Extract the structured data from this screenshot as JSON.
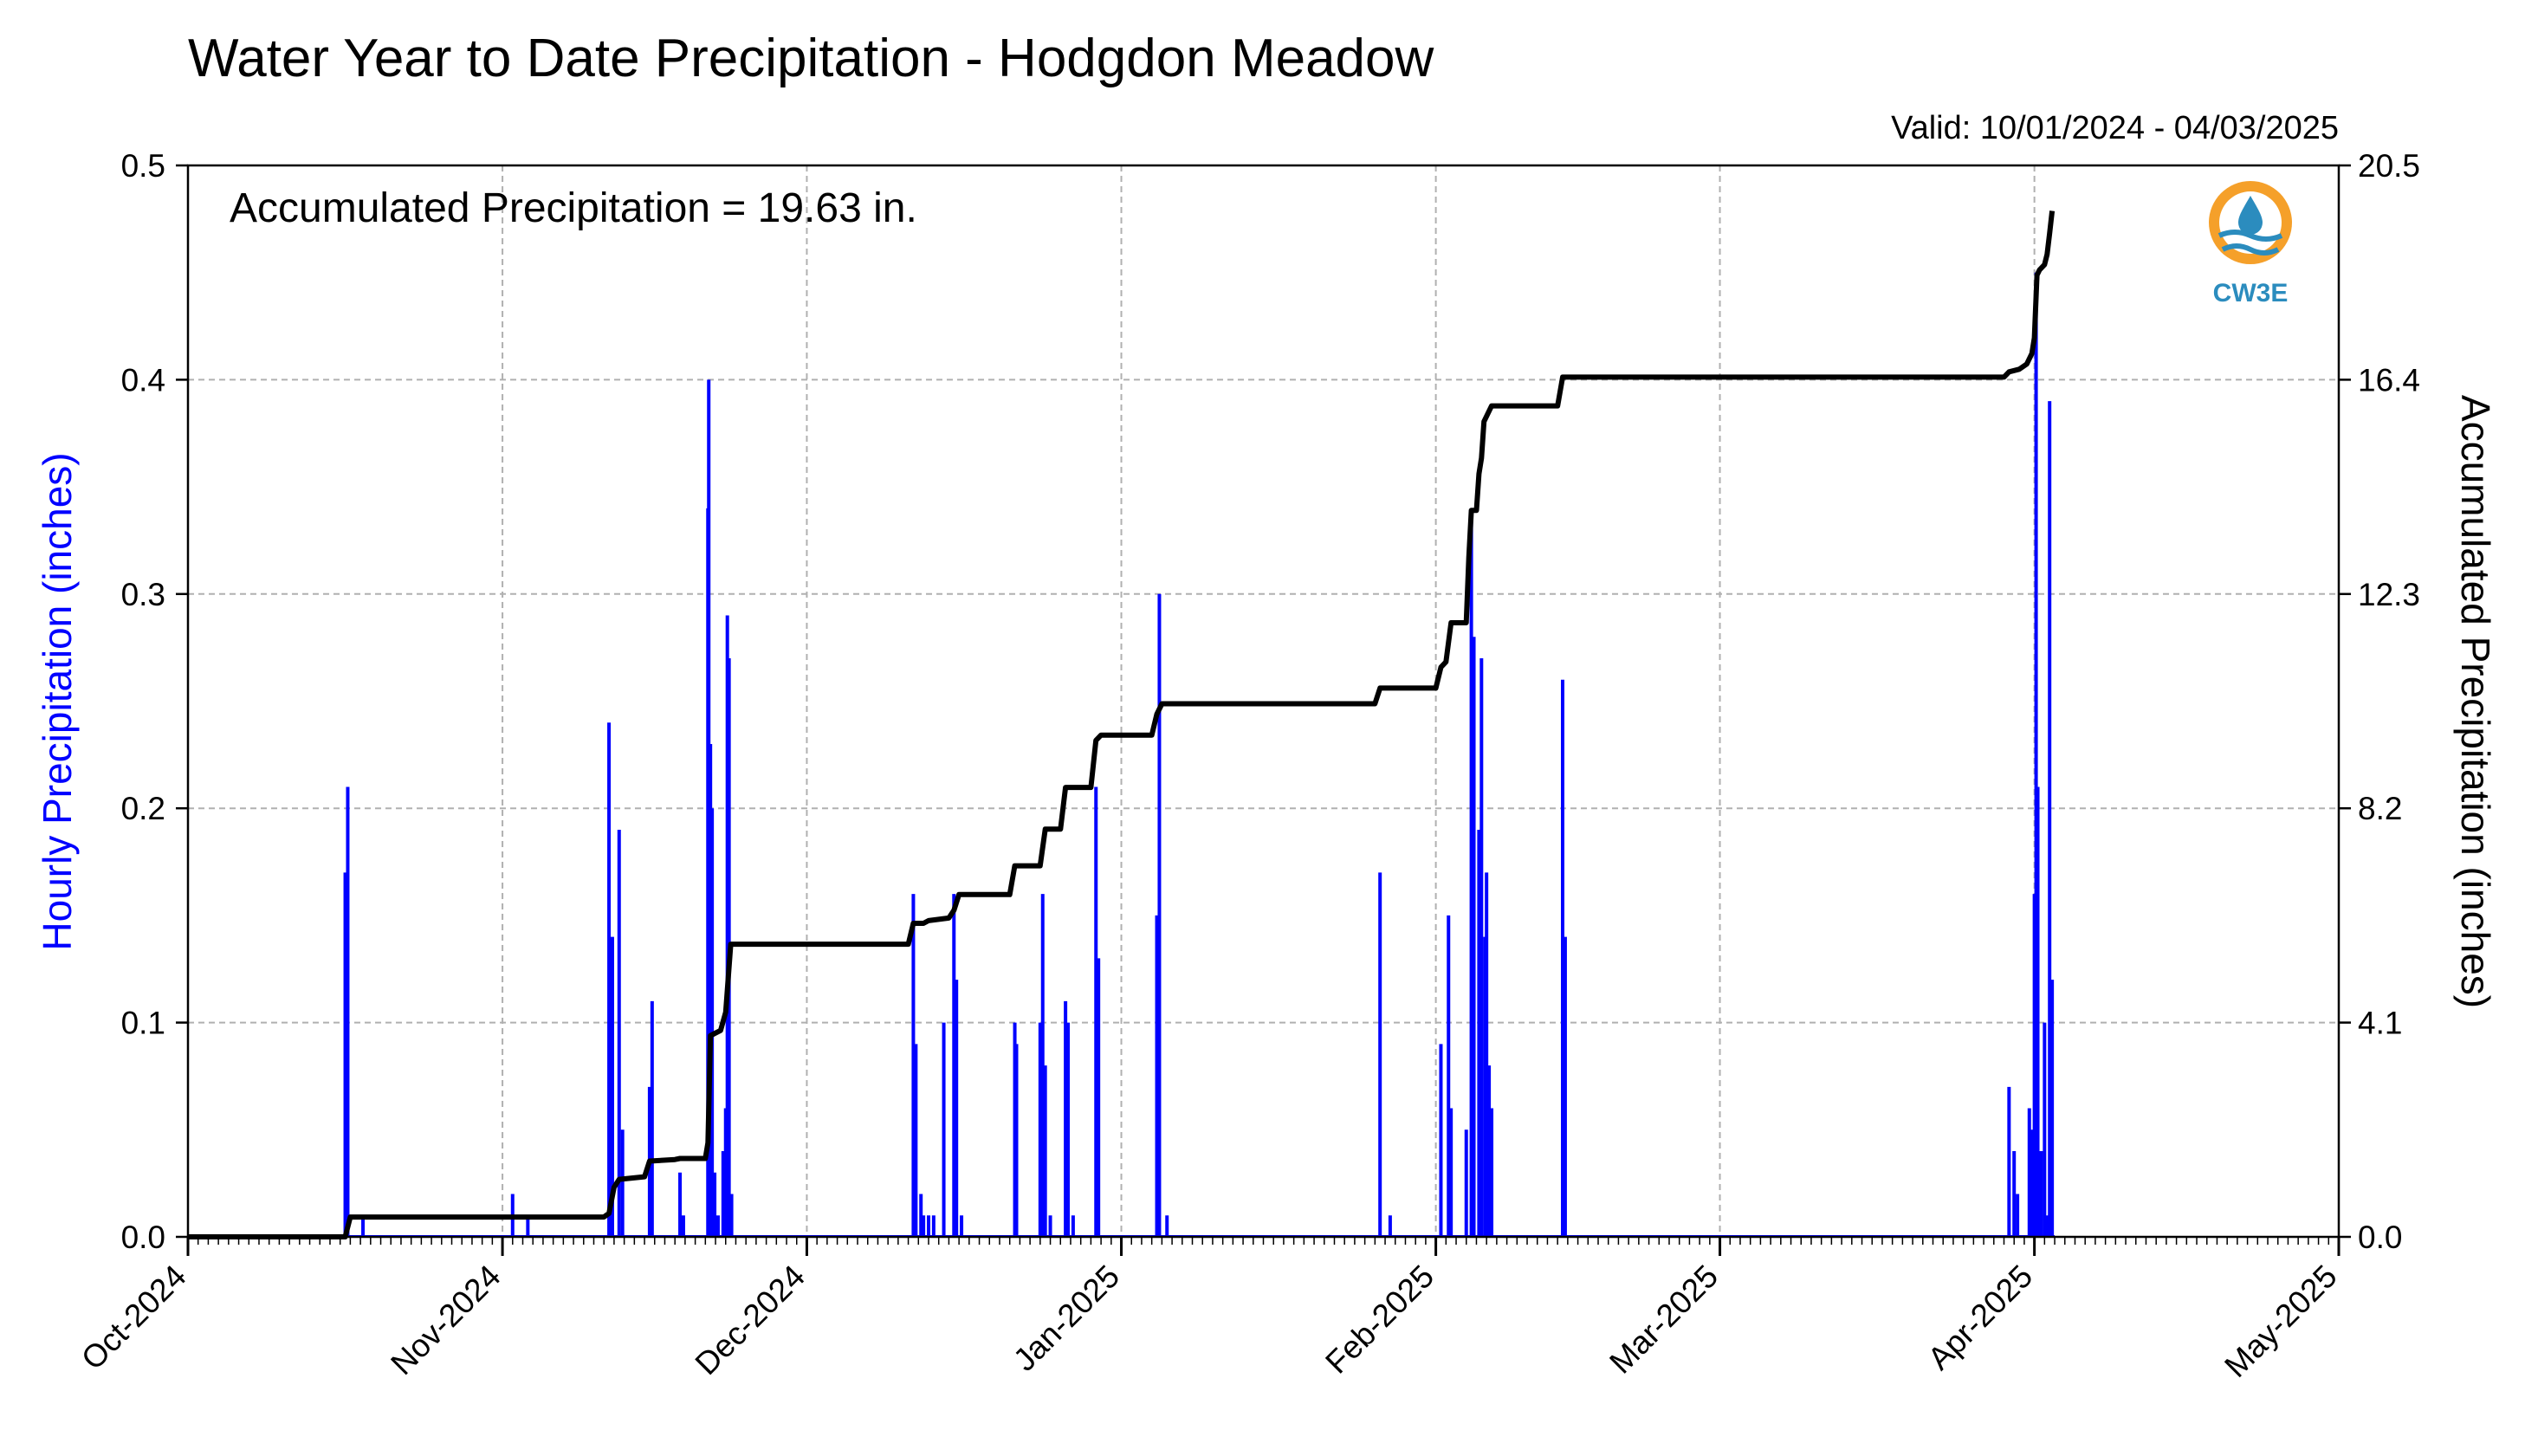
{
  "chart_data": {
    "type": "bar+line",
    "title": "Water Year to Date Precipitation - Hodgdon Meadow",
    "subtitle": "Valid: 10/01/2024 - 04/03/2025",
    "annotation": "Accumulated Precipitation = 19.63 in.",
    "ylabel": "Hourly Precipitation (inches)",
    "y2label": "Accumulated Precipitation (inches)",
    "ylim": [
      0,
      0.5
    ],
    "y2lim": [
      0,
      20.5
    ],
    "xlim": [
      "2024-10-01",
      "2025-05-01"
    ],
    "grid": true,
    "y_ticks": [
      "0.0",
      "0.1",
      "0.2",
      "0.3",
      "0.4",
      "0.5"
    ],
    "y2_ticks": [
      "0.0",
      "4.1",
      "8.2",
      "12.3",
      "16.4",
      "20.5"
    ],
    "x_ticks": [
      {
        "date": "2024-10-01",
        "label": "Oct-2024"
      },
      {
        "date": "2024-11-01",
        "label": "Nov-2024"
      },
      {
        "date": "2024-12-01",
        "label": "Dec-2024"
      },
      {
        "date": "2025-01-01",
        "label": "Jan-2025"
      },
      {
        "date": "2025-02-01",
        "label": "Feb-2025"
      },
      {
        "date": "2025-03-01",
        "label": "Mar-2025"
      },
      {
        "date": "2025-04-01",
        "label": "Apr-2025"
      },
      {
        "date": "2025-05-01",
        "label": "May-2025"
      }
    ],
    "series": [
      {
        "name": "",
        "kind": "hourly-bars",
        "color": "#0000ff",
        "points": [
          [
            "2024-10-16T12",
            0.17
          ],
          [
            "2024-10-16T18",
            0.21
          ],
          [
            "2024-10-18T06",
            0.01
          ],
          [
            "2024-11-02T00",
            0.02
          ],
          [
            "2024-11-03T12",
            0.01
          ],
          [
            "2024-11-11T12",
            0.24
          ],
          [
            "2024-11-11T20",
            0.14
          ],
          [
            "2024-11-12T12",
            0.19
          ],
          [
            "2024-11-12T20",
            0.05
          ],
          [
            "2024-11-15T12",
            0.07
          ],
          [
            "2024-11-15T18",
            0.11
          ],
          [
            "2024-11-18T12",
            0.03
          ],
          [
            "2024-11-18T20",
            0.01
          ],
          [
            "2024-11-21T06",
            0.34
          ],
          [
            "2024-11-21T08",
            0.4
          ],
          [
            "2024-11-21T12",
            0.23
          ],
          [
            "2024-11-21T16",
            0.2
          ],
          [
            "2024-11-21T22",
            0.03
          ],
          [
            "2024-11-22T06",
            0.01
          ],
          [
            "2024-11-22T18",
            0.04
          ],
          [
            "2024-11-23T00",
            0.06
          ],
          [
            "2024-11-23T04",
            0.29
          ],
          [
            "2024-11-23T08",
            0.27
          ],
          [
            "2024-11-23T14",
            0.02
          ],
          [
            "2024-12-11T12",
            0.16
          ],
          [
            "2024-12-11T18",
            0.09
          ],
          [
            "2024-12-12T06",
            0.02
          ],
          [
            "2024-12-12T12",
            0.01
          ],
          [
            "2024-12-13T00",
            0.01
          ],
          [
            "2024-12-13T12",
            0.01
          ],
          [
            "2024-12-14T12",
            0.1
          ],
          [
            "2024-12-15T12",
            0.16
          ],
          [
            "2024-12-15T18",
            0.12
          ],
          [
            "2024-12-16T06",
            0.01
          ],
          [
            "2024-12-21T12",
            0.1
          ],
          [
            "2024-12-21T16",
            0.09
          ],
          [
            "2024-12-24T00",
            0.1
          ],
          [
            "2024-12-24T06",
            0.16
          ],
          [
            "2024-12-24T12",
            0.08
          ],
          [
            "2024-12-25T00",
            0.01
          ],
          [
            "2024-12-26T12",
            0.11
          ],
          [
            "2024-12-26T18",
            0.1
          ],
          [
            "2024-12-27T06",
            0.01
          ],
          [
            "2024-12-29T12",
            0.21
          ],
          [
            "2024-12-29T18",
            0.13
          ],
          [
            "2025-01-04T12",
            0.15
          ],
          [
            "2025-01-04T18",
            0.3
          ],
          [
            "2025-01-05T12",
            0.01
          ],
          [
            "2025-01-26T12",
            0.17
          ],
          [
            "2025-01-27T12",
            0.01
          ],
          [
            "2025-02-01T12",
            0.09
          ],
          [
            "2025-02-02T06",
            0.15
          ],
          [
            "2025-02-02T12",
            0.06
          ],
          [
            "2025-02-04T00",
            0.05
          ],
          [
            "2025-02-04T12",
            0.34
          ],
          [
            "2025-02-04T18",
            0.28
          ],
          [
            "2025-02-05T06",
            0.19
          ],
          [
            "2025-02-05T12",
            0.27
          ],
          [
            "2025-02-05T20",
            0.14
          ],
          [
            "2025-02-06T00",
            0.17
          ],
          [
            "2025-02-06T06",
            0.08
          ],
          [
            "2025-02-06T12",
            0.06
          ],
          [
            "2025-02-13T12",
            0.26
          ],
          [
            "2025-02-13T18",
            0.14
          ],
          [
            "2025-03-29T12",
            0.07
          ],
          [
            "2025-03-30T00",
            0.04
          ],
          [
            "2025-03-30T08",
            0.02
          ],
          [
            "2025-03-31T12",
            0.06
          ],
          [
            "2025-03-31T18",
            0.05
          ],
          [
            "2025-04-01T00",
            0.16
          ],
          [
            "2025-04-01T04",
            0.45
          ],
          [
            "2025-04-01T08",
            0.21
          ],
          [
            "2025-04-01T16",
            0.04
          ],
          [
            "2025-04-02T00",
            0.1
          ],
          [
            "2025-04-02T06",
            0.01
          ],
          [
            "2025-04-02T12",
            0.39
          ],
          [
            "2025-04-02T18",
            0.12
          ]
        ]
      },
      {
        "name": "",
        "kind": "accumulated-line",
        "color": "#000000",
        "points": [
          [
            "2024-10-01T00",
            0.0
          ],
          [
            "2024-10-16T12",
            0.0
          ],
          [
            "2024-10-17T00",
            0.38
          ],
          [
            "2024-11-11T00",
            0.38
          ],
          [
            "2024-11-11T12",
            0.45
          ],
          [
            "2024-11-12T00",
            0.95
          ],
          [
            "2024-11-12T12",
            1.1
          ],
          [
            "2024-11-15T00",
            1.15
          ],
          [
            "2024-11-15T12",
            1.45
          ],
          [
            "2024-11-18T00",
            1.48
          ],
          [
            "2024-11-18T12",
            1.5
          ],
          [
            "2024-11-21T00",
            1.5
          ],
          [
            "2024-11-21T06",
            1.8
          ],
          [
            "2024-11-21T12",
            3.85
          ],
          [
            "2024-11-22T00",
            3.9
          ],
          [
            "2024-11-22T12",
            3.95
          ],
          [
            "2024-11-23T00",
            4.3
          ],
          [
            "2024-11-23T12",
            5.6
          ],
          [
            "2024-12-11T00",
            5.6
          ],
          [
            "2024-12-11T12",
            6.0
          ],
          [
            "2024-12-12T12",
            6.0
          ],
          [
            "2024-12-13T00",
            6.05
          ],
          [
            "2024-12-15T00",
            6.1
          ],
          [
            "2024-12-15T12",
            6.25
          ],
          [
            "2024-12-16T00",
            6.55
          ],
          [
            "2024-12-21T00",
            6.55
          ],
          [
            "2024-12-21T12",
            7.1
          ],
          [
            "2024-12-24T00",
            7.1
          ],
          [
            "2024-12-24T12",
            7.8
          ],
          [
            "2024-12-26T00",
            7.8
          ],
          [
            "2024-12-26T12",
            8.6
          ],
          [
            "2024-12-29T00",
            8.6
          ],
          [
            "2024-12-29T12",
            9.5
          ],
          [
            "2024-12-30T00",
            9.6
          ],
          [
            "2025-01-04T00",
            9.6
          ],
          [
            "2025-01-04T12",
            10.0
          ],
          [
            "2025-01-05T00",
            10.2
          ],
          [
            "2025-01-26T00",
            10.2
          ],
          [
            "2025-01-26T12",
            10.5
          ],
          [
            "2025-02-01T00",
            10.5
          ],
          [
            "2025-02-01T12",
            10.9
          ],
          [
            "2025-02-02T00",
            11.0
          ],
          [
            "2025-02-02T12",
            11.75
          ],
          [
            "2025-02-04T00",
            11.75
          ],
          [
            "2025-02-04T06",
            13.0
          ],
          [
            "2025-02-04T12",
            13.9
          ],
          [
            "2025-02-05T00",
            13.9
          ],
          [
            "2025-02-05T06",
            14.6
          ],
          [
            "2025-02-05T12",
            14.9
          ],
          [
            "2025-02-05T18",
            15.6
          ],
          [
            "2025-02-06T12",
            15.9
          ],
          [
            "2025-02-13T00",
            15.9
          ],
          [
            "2025-02-13T12",
            16.45
          ],
          [
            "2025-03-29T00",
            16.45
          ],
          [
            "2025-03-29T12",
            16.55
          ],
          [
            "2025-03-30T12",
            16.6
          ],
          [
            "2025-03-31T06",
            16.7
          ],
          [
            "2025-03-31T18",
            16.9
          ],
          [
            "2025-04-01T00",
            17.2
          ],
          [
            "2025-04-01T06",
            18.4
          ],
          [
            "2025-04-01T12",
            18.5
          ],
          [
            "2025-04-02T00",
            18.6
          ],
          [
            "2025-04-02T06",
            18.8
          ],
          [
            "2025-04-02T12",
            19.2
          ],
          [
            "2025-04-02T18",
            19.63
          ]
        ]
      }
    ]
  },
  "logo": {
    "text": "CW3E",
    "colors": {
      "ring": "#f5a02a",
      "wave": "#2b8cbe",
      "text": "#2b8cbe"
    }
  }
}
